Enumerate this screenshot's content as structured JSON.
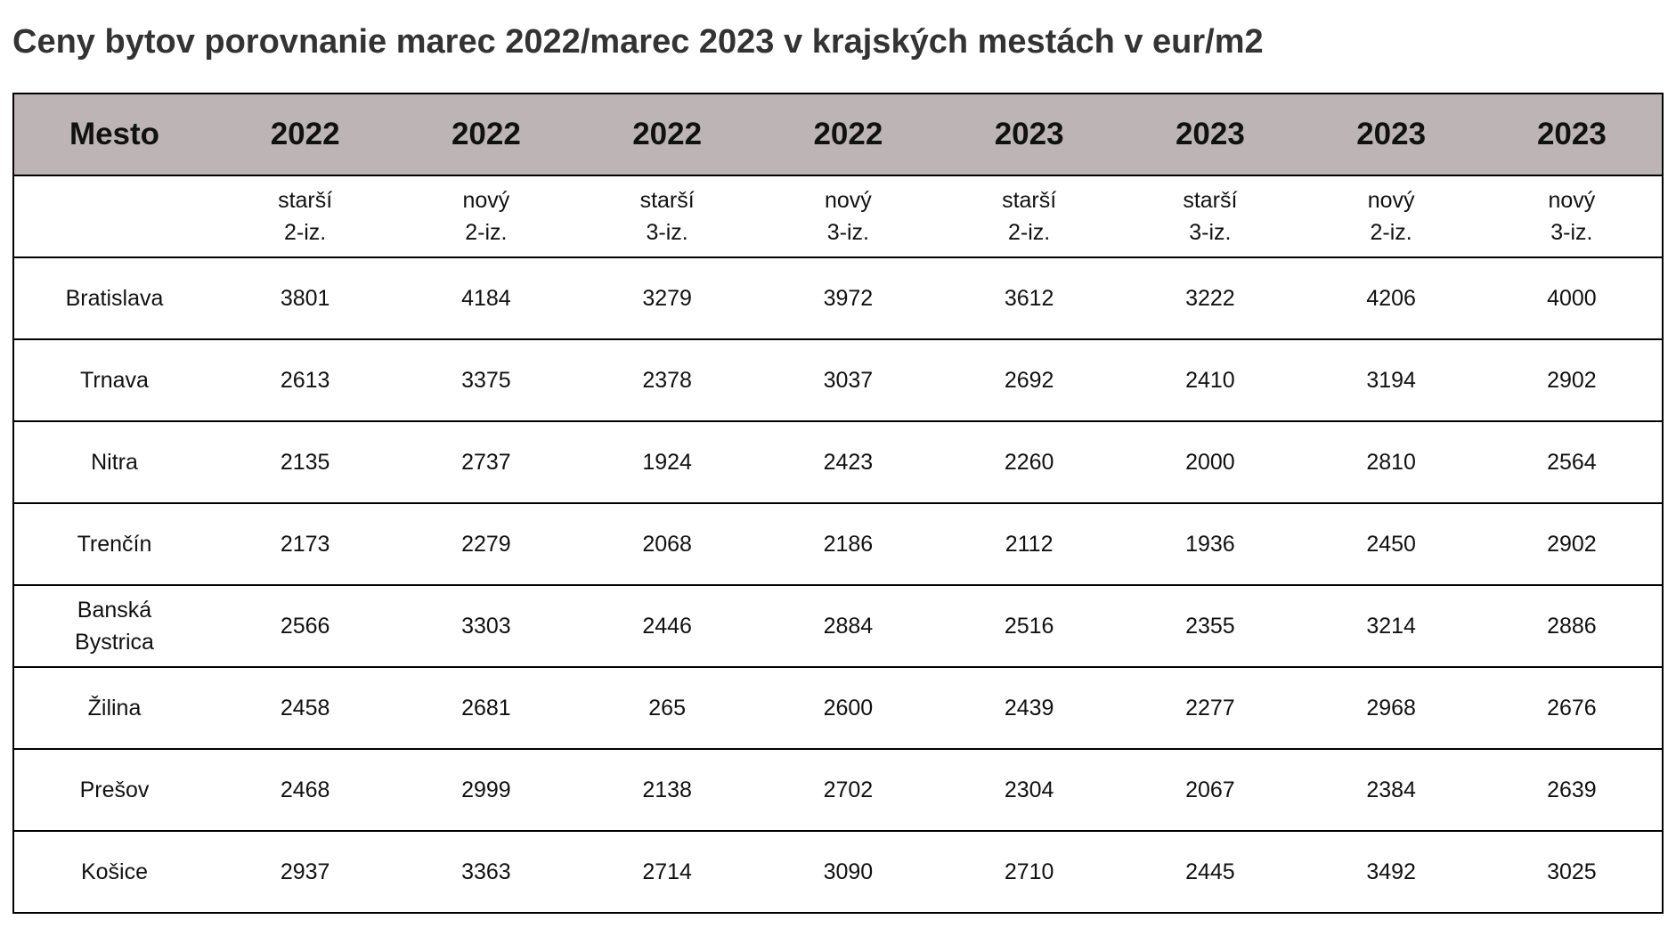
{
  "title": "Ceny bytov porovnanie marec 2022/marec 2023 v krajských mestách v eur/m2",
  "table": {
    "header": [
      "Mesto",
      "2022",
      "2022",
      "2022",
      "2022",
      "2023",
      "2023",
      "2023",
      "2023"
    ],
    "subheader": [
      "starší\n2-iz.",
      "nový\n2-iz.",
      "starší\n3-iz.",
      "nový\n3-iz.",
      "starší\n2-iz.",
      "starší\n3-iz.",
      "nový\n2-iz.",
      "nový\n3-iz."
    ],
    "rows": [
      {
        "city": "Bratislava",
        "values": [
          3801,
          4184,
          3279,
          3972,
          3612,
          3222,
          4206,
          4000
        ]
      },
      {
        "city": "Trnava",
        "values": [
          2613,
          3375,
          2378,
          3037,
          2692,
          2410,
          3194,
          2902
        ]
      },
      {
        "city": "Nitra",
        "values": [
          2135,
          2737,
          1924,
          2423,
          2260,
          2000,
          2810,
          2564
        ]
      },
      {
        "city": "Trenčín",
        "values": [
          2173,
          2279,
          2068,
          2186,
          2112,
          1936,
          2450,
          2902
        ]
      },
      {
        "city": "Banská\nBystrica",
        "values": [
          2566,
          3303,
          2446,
          2884,
          2516,
          2355,
          3214,
          2886
        ]
      },
      {
        "city": "Žilina",
        "values": [
          2458,
          2681,
          265,
          2600,
          2439,
          2277,
          2968,
          2676
        ]
      },
      {
        "city": "Prešov",
        "values": [
          2468,
          2999,
          2138,
          2702,
          2304,
          2067,
          2384,
          2639
        ]
      },
      {
        "city": "Košice",
        "values": [
          2937,
          3363,
          2714,
          3090,
          2710,
          2445,
          3492,
          3025
        ]
      }
    ]
  }
}
